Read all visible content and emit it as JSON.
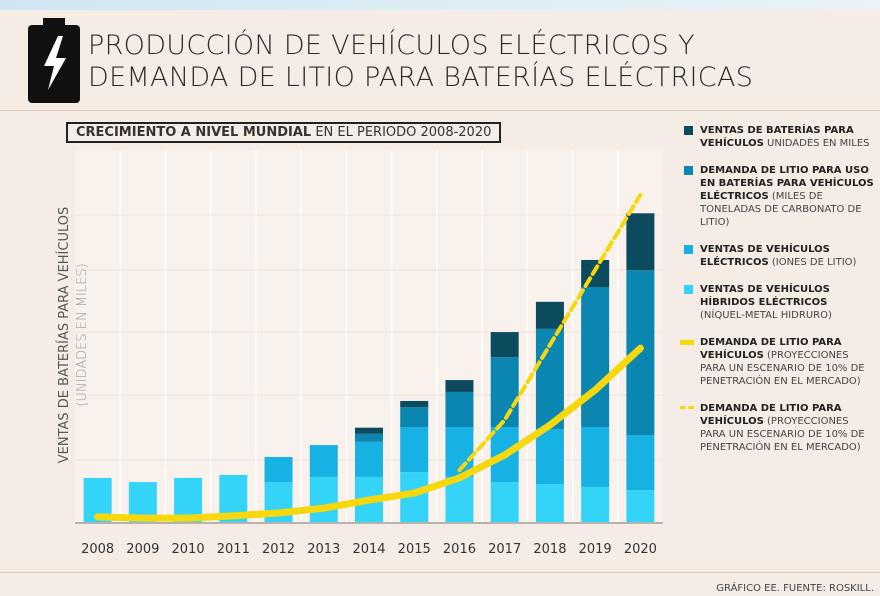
{
  "chart_data": {
    "type": "bar",
    "stacked": true,
    "title": [
      "PRODUCCIÓN DE VEHÍCULOS ELÉCTRICOS Y",
      "DEMANDA DE LITIO PARA BATERÍAS ELÉCTRICAS"
    ],
    "subtitle": {
      "bold": "CRECIMIENTO A NIVEL MUNDIAL",
      "rest": "EN EL PERIODO 2008-2020"
    },
    "y_label": "VENTAS DE BATERÍAS PARA VEHÍCULOS",
    "y_label_unit": "(UNIDADES EN MILES)",
    "source": "GRÁFICO EE. FUENTE: ROSKILL.",
    "categories": [
      "2008",
      "2009",
      "2010",
      "2011",
      "2012",
      "2013",
      "2014",
      "2015",
      "2016",
      "2017",
      "2018",
      "2019",
      "2020"
    ],
    "ylim": [
      0,
      105
    ],
    "series": [
      {
        "name": "VENTAS DE VEHÍCULOS HÍBRIDOS ELÉCTRICOS",
        "note": "(NÍQUEL-METAL HIDRURO)",
        "color": "#33d4f7",
        "values": [
          13.7,
          12.4,
          13.7,
          14.6,
          12.4,
          14.0,
          14.0,
          15.5,
          14.0,
          12.4,
          11.8,
          10.9,
          9.9
        ]
      },
      {
        "name": "VENTAS DE VEHÍCULOS ELÉCTRICOS",
        "note": "(IONES DE LITIO)",
        "color": "#17b2e3",
        "values": [
          0,
          0,
          0,
          0,
          7.8,
          9.9,
          10.9,
          14.0,
          15.5,
          17.1,
          17.1,
          18.6,
          17.1
        ]
      },
      {
        "name": "DEMANDA DE LITIO PARA USO EN BATERÍAS PARA VEHÍCULOS ELÉCTRICOS",
        "note": "(MILES DE TONELADAS DE CARBONATO DE LITIO)",
        "color": "#0b86b0",
        "values": [
          0,
          0,
          0,
          0,
          0,
          0,
          2.5,
          6.2,
          10.9,
          21.7,
          31.1,
          43.5,
          51.2
        ]
      },
      {
        "name": "VENTAS DE BATERÍAS PARA VEHÍCULOS",
        "note": "UNIDADES EN MILES",
        "color": "#0c4a5e",
        "values": [
          0,
          0,
          0,
          0,
          0,
          0,
          1.9,
          1.9,
          3.7,
          7.8,
          8.4,
          8.4,
          17.7
        ]
      },
      {
        "name": "DEMANDA DE LITIO PARA VEHÍCULOS",
        "note": "(PROYECCIONES PARA UN ESCENARIO DE 10% DE PENETRACIÓN EN EL MERCADO)",
        "color": "#f6d80c",
        "type": "line",
        "dashed": false,
        "values": [
          1.6,
          1.2,
          1.2,
          1.9,
          2.8,
          4.3,
          6.8,
          9.0,
          13.7,
          20.8,
          30.1,
          41.0,
          54.0
        ]
      },
      {
        "name": "DEMANDA DE LITIO PARA VEHÍCULOS",
        "note": "(PROYECCIONES PARA UN ESCENARIO DE 10% DE PENETRACIÓN EN EL MERCADO)",
        "color": "#f6d80c",
        "type": "line",
        "dashed": true,
        "values": [
          null,
          null,
          null,
          null,
          null,
          null,
          null,
          null,
          16.1,
          31.7,
          55.0,
          78.3,
          101.6
        ]
      }
    ]
  }
}
